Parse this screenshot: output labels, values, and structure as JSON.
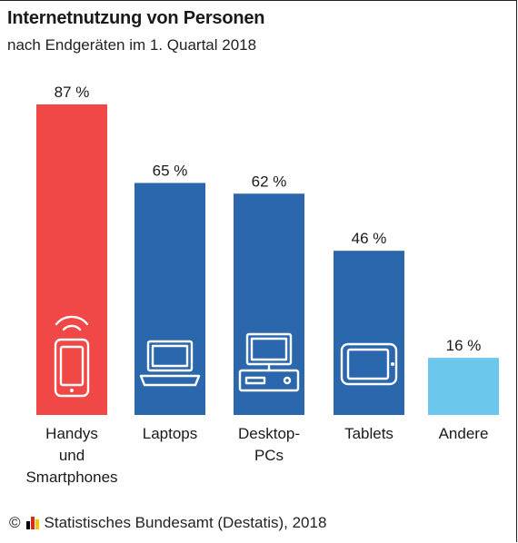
{
  "title": "Internetnutzung von Personen",
  "subtitle": "nach Endgeräten im 1. Quartal 2018",
  "source": "Statistisches Bundesamt (Destatis), 2018",
  "copyright_symbol": "©",
  "colors": {
    "smartphone": "#f04747",
    "device": "#2b67ad",
    "other": "#6cc7ef",
    "logo": [
      "#000000",
      "#d52b1e",
      "#f5c400"
    ]
  },
  "chart_data": {
    "type": "bar",
    "categories": [
      "Handys und Smartphones",
      "Laptops",
      "Desktop-PCs",
      "Tablets",
      "Andere"
    ],
    "category_lines": [
      [
        "Handys",
        "und",
        "Smartphones"
      ],
      [
        "Laptops"
      ],
      [
        "Desktop-",
        "PCs"
      ],
      [
        "Tablets"
      ],
      [
        "Andere"
      ]
    ],
    "values": [
      87,
      65,
      62,
      46,
      16
    ],
    "value_labels": [
      "87 %",
      "65 %",
      "62 %",
      "46 %",
      "16 %"
    ],
    "icons": [
      "smartphone-icon",
      "laptop-icon",
      "desktop-pc-icon",
      "tablet-icon",
      ""
    ],
    "bar_colors": [
      "#f04747",
      "#2b67ad",
      "#2b67ad",
      "#2b67ad",
      "#6cc7ef"
    ],
    "unit": "%",
    "ylim": [
      0,
      100
    ],
    "grid": false,
    "legend": "none"
  }
}
